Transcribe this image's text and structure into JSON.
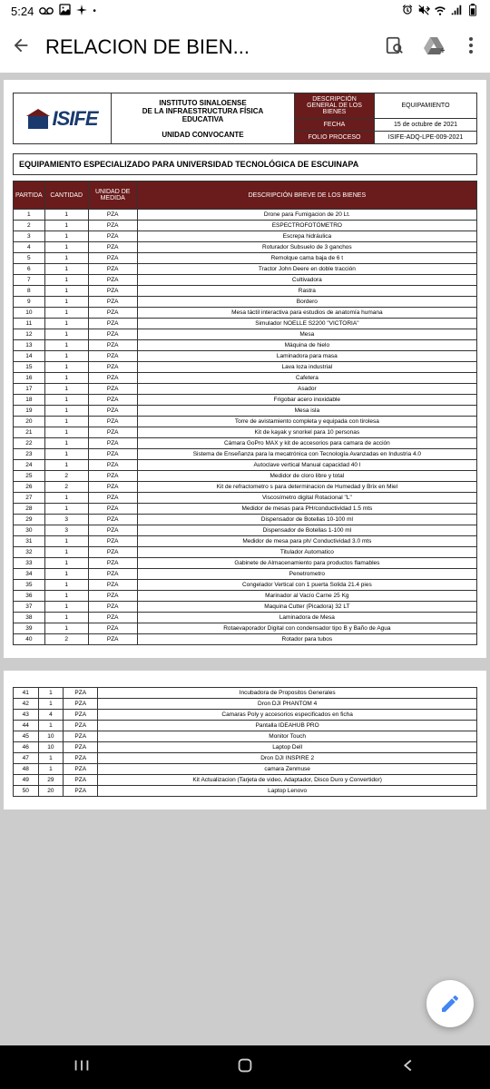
{
  "status": {
    "time": "5:24",
    "icons": [
      "voicemail",
      "image",
      "sparkle",
      "dot"
    ]
  },
  "appbar": {
    "title": "RELACION DE BIEN..."
  },
  "doc": {
    "logo_text": "ISIFE",
    "institute_line1": "INSTITUTO SINALOENSE",
    "institute_line2": "DE LA INFRAESTRUCTURA FÍSICA",
    "institute_line3": "EDUCATIVA",
    "institute_sub": "UNIDAD  CONVOCANTE",
    "info": {
      "desc_label": "DESCRIPCIÓN GENERAL DE LOS BIENES",
      "desc_value": "EQUIPAMIENTO",
      "fecha_label": "FECHA",
      "fecha_value": "15 de octubre de 2021",
      "folio_label": "FOLIO PROCESO",
      "folio_value": "ISIFE-ADQ-LPE-009-2021"
    },
    "section_title": "EQUIPAMIENTO ESPECIALIZADO PARA UNIVERSIDAD TECNOLÓGICA DE ESCUINAPA",
    "columns": {
      "partida": "PARTIDA",
      "cantidad": "CANTIDAD",
      "unidad": "UNIDAD DE MEDIDA",
      "descripcion": "DESCRIPCIÓN BREVE DE LOS BIENES"
    },
    "rows1": [
      {
        "p": "1",
        "c": "1",
        "u": "PZA",
        "d": "Drone para Fumigacion de 20 Lt."
      },
      {
        "p": "2",
        "c": "1",
        "u": "PZA",
        "d": "ESPECTROFOTÓMETRO"
      },
      {
        "p": "3",
        "c": "1",
        "u": "PZA",
        "d": "Escrepa hidráulica"
      },
      {
        "p": "4",
        "c": "1",
        "u": "PZA",
        "d": "Roturador Subsuelo de 3 ganchos"
      },
      {
        "p": "5",
        "c": "1",
        "u": "PZA",
        "d": "Remolque cama baja de 6 t"
      },
      {
        "p": "6",
        "c": "1",
        "u": "PZA",
        "d": "Tractor John Deere en doble tracción"
      },
      {
        "p": "7",
        "c": "1",
        "u": "PZA",
        "d": "Cultivadora"
      },
      {
        "p": "8",
        "c": "1",
        "u": "PZA",
        "d": "Rastra"
      },
      {
        "p": "9",
        "c": "1",
        "u": "PZA",
        "d": "Bordero"
      },
      {
        "p": "10",
        "c": "1",
        "u": "PZA",
        "d": "Mesa táctil interactiva para estudios de anatomía humana"
      },
      {
        "p": "11",
        "c": "1",
        "u": "PZA",
        "d": "Simulador NOELLE S2200 \"VICTORIA\""
      },
      {
        "p": "12",
        "c": "1",
        "u": "PZA",
        "d": "Mesa"
      },
      {
        "p": "13",
        "c": "1",
        "u": "PZA",
        "d": "Máquina de hielo"
      },
      {
        "p": "14",
        "c": "1",
        "u": "PZA",
        "d": "Laminadora para masa"
      },
      {
        "p": "15",
        "c": "1",
        "u": "PZA",
        "d": "Lava loza industrial"
      },
      {
        "p": "16",
        "c": "1",
        "u": "PZA",
        "d": "Cafetera"
      },
      {
        "p": "17",
        "c": "1",
        "u": "PZA",
        "d": "Asador"
      },
      {
        "p": "18",
        "c": "1",
        "u": "PZA",
        "d": "Frigobar acero inoxidable"
      },
      {
        "p": "19",
        "c": "1",
        "u": "PZA",
        "d": "Mesa isla"
      },
      {
        "p": "20",
        "c": "1",
        "u": "PZA",
        "d": "Torre de avistamiento completa y equipada con tirolesa"
      },
      {
        "p": "21",
        "c": "1",
        "u": "PZA",
        "d": "Kit de kayak y snorkel para 10 personas"
      },
      {
        "p": "22",
        "c": "1",
        "u": "PZA",
        "d": "Cámara GoPro MAX y kit de accesorios para camara de acción"
      },
      {
        "p": "23",
        "c": "1",
        "u": "PZA",
        "d": "Sistema de Enseñanza para la mecatrónica con Tecnología Avanzadas en Industria 4.0"
      },
      {
        "p": "24",
        "c": "1",
        "u": "PZA",
        "d": "Autoclave vertical Manual capacidad 40 l"
      },
      {
        "p": "25",
        "c": "2",
        "u": "PZA",
        "d": "Medidor de cloro libre y total"
      },
      {
        "p": "26",
        "c": "2",
        "u": "PZA",
        "d": "Kit de refractometro s para determinacion de Humedad y Brix en Miel"
      },
      {
        "p": "27",
        "c": "1",
        "u": "PZA",
        "d": "Viscosímetro digital Rotacional \"L\""
      },
      {
        "p": "28",
        "c": "1",
        "u": "PZA",
        "d": "Medidor de mesas para PH/conductividad 1.5 mts"
      },
      {
        "p": "29",
        "c": "3",
        "u": "PZA",
        "d": "Dispensador de Botellas 10-100 ml"
      },
      {
        "p": "30",
        "c": "3",
        "u": "PZA",
        "d": "Dispensador de Botellas 1-100 ml"
      },
      {
        "p": "31",
        "c": "1",
        "u": "PZA",
        "d": "Medidor de mesa para ph/ Conductividad 3.0 mts"
      },
      {
        "p": "32",
        "c": "1",
        "u": "PZA",
        "d": "Titulador Automatico"
      },
      {
        "p": "33",
        "c": "1",
        "u": "PZA",
        "d": "Gabinete de Almacenamiento para productos flamables"
      },
      {
        "p": "34",
        "c": "1",
        "u": "PZA",
        "d": "Penetrometro"
      },
      {
        "p": "35",
        "c": "1",
        "u": "PZA",
        "d": "Congelador Vertical con 1 puerta Solida 21.4 pies"
      },
      {
        "p": "36",
        "c": "1",
        "u": "PZA",
        "d": "Marinador al Vacío Carne 25 Kg"
      },
      {
        "p": "37",
        "c": "1",
        "u": "PZA",
        "d": "Maquina Cutter (Picadora) 32 LT"
      },
      {
        "p": "38",
        "c": "1",
        "u": "PZA",
        "d": "Laminadora de Mesa"
      },
      {
        "p": "39",
        "c": "1",
        "u": "PZA",
        "d": "Rotaevaporador Digital con condensador tipo B y Baño de Agua"
      },
      {
        "p": "40",
        "c": "2",
        "u": "PZA",
        "d": "Rotador para tubos"
      }
    ],
    "rows2": [
      {
        "p": "41",
        "c": "1",
        "u": "PZA",
        "d": "Incubadora de Propositos Generales"
      },
      {
        "p": "42",
        "c": "1",
        "u": "PZA",
        "d": "Dron DJI PHANTOM 4"
      },
      {
        "p": "43",
        "c": "4",
        "u": "PZA",
        "d": "Camaras Poly y accesorios especificados en ficha"
      },
      {
        "p": "44",
        "c": "1",
        "u": "PZA",
        "d": "Pantalla IDEAHUB PRO"
      },
      {
        "p": "45",
        "c": "10",
        "u": "PZA",
        "d": "Monitor Touch"
      },
      {
        "p": "46",
        "c": "10",
        "u": "PZA",
        "d": "Laptop Dell"
      },
      {
        "p": "47",
        "c": "1",
        "u": "PZA",
        "d": "Dron DJI INSPIRE 2"
      },
      {
        "p": "48",
        "c": "1",
        "u": "PZA",
        "d": "camara Zenmuse"
      },
      {
        "p": "49",
        "c": "29",
        "u": "PZA",
        "d": "Kit Actualizacion (Tarjeta de video, Adaptador, Disco Duro y Convertidor)"
      },
      {
        "p": "50",
        "c": "20",
        "u": "PZA",
        "d": "Laptop Lenovo"
      }
    ]
  },
  "colors": {
    "header_bg": "#6a1b1b",
    "accent_blue": "#4285f4"
  }
}
